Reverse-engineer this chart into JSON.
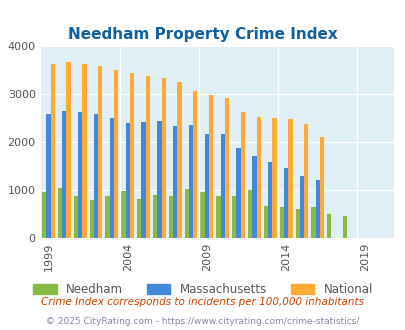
{
  "title": "Needham Property Crime Index",
  "title_color": "#1060a0",
  "years": [
    1999,
    2000,
    2001,
    2002,
    2003,
    2004,
    2005,
    2006,
    2007,
    2008,
    2009,
    2010,
    2011,
    2012,
    2013,
    2014,
    2015,
    2016,
    2017,
    2018,
    2019,
    2020
  ],
  "needham": [
    950,
    1030,
    870,
    790,
    860,
    970,
    810,
    900,
    870,
    1020,
    960,
    870,
    860,
    990,
    650,
    630,
    590,
    640,
    490,
    450,
    null,
    null
  ],
  "massachusetts": [
    2580,
    2640,
    2620,
    2590,
    2490,
    2390,
    2420,
    2440,
    2330,
    2350,
    2160,
    2160,
    1870,
    1700,
    1580,
    1460,
    1280,
    1200,
    null,
    null,
    null,
    null
  ],
  "national": [
    3620,
    3660,
    3620,
    3590,
    3510,
    3450,
    3380,
    3330,
    3260,
    3060,
    2970,
    2920,
    2620,
    2510,
    2500,
    2470,
    2380,
    2110,
    null,
    null,
    null,
    null
  ],
  "needham_color": "#88bb44",
  "mass_color": "#4488dd",
  "national_color": "#ffaa33",
  "bg_color": "#e0eef5",
  "ylim": [
    0,
    4000
  ],
  "yticks": [
    0,
    1000,
    2000,
    3000,
    4000
  ],
  "xtick_years": [
    1999,
    2004,
    2009,
    2014,
    2019
  ],
  "subtitle": "Crime Index corresponds to incidents per 100,000 inhabitants",
  "subtitle_color": "#cc4400",
  "footer": "© 2025 CityRating.com - https://www.cityrating.com/crime-statistics/",
  "footer_color": "#8888aa",
  "legend_labels": [
    "Needham",
    "Massachusetts",
    "National"
  ]
}
